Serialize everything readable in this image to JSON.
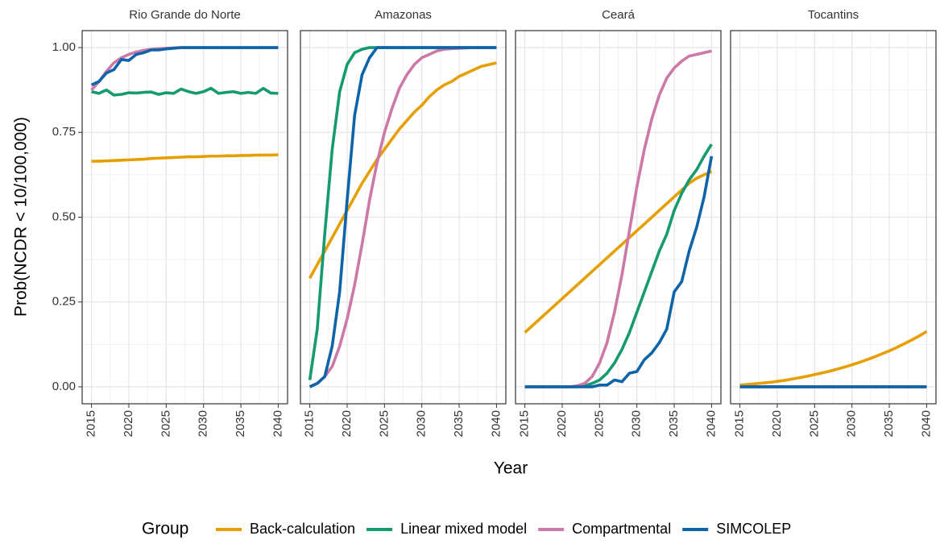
{
  "axis_labels": {
    "x": "Year",
    "y": "Prob(NCDR < 10/100,000)"
  },
  "legend_title": "Group",
  "chart_data": [
    {
      "type": "line",
      "title": "Rio Grande do Norte",
      "x": [
        2015,
        2016,
        2017,
        2018,
        2019,
        2020,
        2021,
        2022,
        2023,
        2024,
        2025,
        2026,
        2027,
        2028,
        2029,
        2030,
        2031,
        2032,
        2033,
        2034,
        2035,
        2036,
        2037,
        2038,
        2039,
        2040
      ],
      "xlim": [
        2013.75,
        2041.25
      ],
      "xticks": [
        2015,
        2020,
        2025,
        2030,
        2035,
        2040
      ],
      "ylim": [
        -0.05,
        1.05
      ],
      "yticks": [
        {
          "value": 0,
          "label": "0.00"
        },
        {
          "value": 0.25,
          "label": "0.25"
        },
        {
          "value": 0.5,
          "label": "0.50"
        },
        {
          "value": 0.75,
          "label": "0.75"
        },
        {
          "value": 1,
          "label": "1.00"
        }
      ],
      "grid": true,
      "series": [
        {
          "name": "Back-calculation",
          "color": "#E69F00",
          "values": [
            0.665,
            0.665,
            0.666,
            0.667,
            0.668,
            0.669,
            0.67,
            0.671,
            0.673,
            0.674,
            0.675,
            0.676,
            0.677,
            0.678,
            0.678,
            0.679,
            0.68,
            0.68,
            0.681,
            0.681,
            0.682,
            0.682,
            0.683,
            0.683,
            0.683,
            0.684
          ]
        },
        {
          "name": "Linear mixed model",
          "color": "#169A70",
          "values": [
            0.87,
            0.865,
            0.875,
            0.86,
            0.862,
            0.867,
            0.866,
            0.868,
            0.869,
            0.862,
            0.867,
            0.865,
            0.878,
            0.87,
            0.865,
            0.87,
            0.88,
            0.865,
            0.868,
            0.87,
            0.865,
            0.868,
            0.865,
            0.88,
            0.866,
            0.865
          ]
        },
        {
          "name": "Compartmental",
          "color": "#CC79A7",
          "values": [
            0.875,
            0.9,
            0.93,
            0.955,
            0.97,
            0.98,
            0.987,
            0.992,
            0.995,
            0.997,
            0.998,
            0.999,
            1,
            1,
            1,
            1,
            1,
            1,
            1,
            1,
            1,
            1,
            1,
            1,
            1,
            1
          ]
        },
        {
          "name": "SIMCOLEP",
          "color": "#0E64A8",
          "values": [
            0.89,
            0.9,
            0.925,
            0.935,
            0.965,
            0.962,
            0.98,
            0.985,
            0.993,
            0.993,
            0.996,
            0.998,
            1,
            1,
            1,
            1,
            1,
            1,
            1,
            1,
            1,
            1,
            1,
            1,
            1,
            1
          ]
        }
      ]
    },
    {
      "type": "line",
      "title": "Amazonas",
      "x": [
        2015,
        2016,
        2017,
        2018,
        2019,
        2020,
        2021,
        2022,
        2023,
        2024,
        2025,
        2026,
        2027,
        2028,
        2029,
        2030,
        2031,
        2032,
        2033,
        2034,
        2035,
        2036,
        2037,
        2038,
        2039,
        2040
      ],
      "xlim": [
        2013.75,
        2041.25
      ],
      "xticks": [
        2015,
        2020,
        2025,
        2030,
        2035,
        2040
      ],
      "ylim": [
        -0.05,
        1.05
      ],
      "yticks": [
        0,
        0.25,
        0.5,
        0.75,
        1
      ],
      "grid": true,
      "series": [
        {
          "name": "Back-calculation",
          "color": "#E69F00",
          "values": [
            0.32,
            0.36,
            0.4,
            0.44,
            0.48,
            0.52,
            0.56,
            0.6,
            0.635,
            0.67,
            0.7,
            0.73,
            0.76,
            0.785,
            0.81,
            0.83,
            0.855,
            0.875,
            0.89,
            0.9,
            0.915,
            0.925,
            0.935,
            0.945,
            0.95,
            0.955
          ]
        },
        {
          "name": "Linear mixed model",
          "color": "#169A70",
          "values": [
            0.02,
            0.17,
            0.45,
            0.7,
            0.87,
            0.95,
            0.985,
            0.995,
            1,
            1,
            1,
            1,
            1,
            1,
            1,
            1,
            1,
            1,
            1,
            1,
            1,
            1,
            1,
            1,
            1,
            1
          ]
        },
        {
          "name": "Compartmental",
          "color": "#CC79A7",
          "values": [
            0,
            0.01,
            0.03,
            0.06,
            0.12,
            0.2,
            0.3,
            0.42,
            0.55,
            0.66,
            0.75,
            0.82,
            0.88,
            0.92,
            0.95,
            0.97,
            0.98,
            0.99,
            0.995,
            0.997,
            0.998,
            0.999,
            1,
            1,
            1,
            1
          ]
        },
        {
          "name": "SIMCOLEP",
          "color": "#0E64A8",
          "values": [
            0,
            0.01,
            0.03,
            0.12,
            0.28,
            0.55,
            0.8,
            0.92,
            0.97,
            1,
            1,
            1,
            1,
            1,
            1,
            1,
            1,
            1,
            1,
            1,
            1,
            1,
            1,
            1,
            1,
            1
          ]
        }
      ]
    },
    {
      "type": "line",
      "title": "Ceará",
      "x": [
        2015,
        2016,
        2017,
        2018,
        2019,
        2020,
        2021,
        2022,
        2023,
        2024,
        2025,
        2026,
        2027,
        2028,
        2029,
        2030,
        2031,
        2032,
        2033,
        2034,
        2035,
        2036,
        2037,
        2038,
        2039,
        2040
      ],
      "xlim": [
        2013.75,
        2041.25
      ],
      "xticks": [
        2015,
        2020,
        2025,
        2030,
        2035,
        2040
      ],
      "ylim": [
        -0.05,
        1.05
      ],
      "yticks": [
        0,
        0.25,
        0.5,
        0.75,
        1
      ],
      "grid": true,
      "series": [
        {
          "name": "Back-calculation",
          "color": "#E69F00",
          "values": [
            0.16,
            0.18,
            0.2,
            0.22,
            0.24,
            0.26,
            0.28,
            0.3,
            0.32,
            0.34,
            0.36,
            0.38,
            0.4,
            0.42,
            0.44,
            0.46,
            0.48,
            0.5,
            0.52,
            0.54,
            0.56,
            0.58,
            0.6,
            0.615,
            0.625,
            0.635
          ]
        },
        {
          "name": "Linear mixed model",
          "color": "#169A70",
          "values": [
            0,
            0,
            0,
            0,
            0,
            0,
            0,
            0,
            0.003,
            0.01,
            0.02,
            0.04,
            0.07,
            0.11,
            0.16,
            0.22,
            0.28,
            0.34,
            0.4,
            0.45,
            0.52,
            0.57,
            0.61,
            0.64,
            0.68,
            0.715
          ]
        },
        {
          "name": "Compartmental",
          "color": "#CC79A7",
          "values": [
            0,
            0,
            0,
            0,
            0,
            0,
            0,
            0.003,
            0.01,
            0.03,
            0.07,
            0.13,
            0.22,
            0.33,
            0.46,
            0.59,
            0.7,
            0.79,
            0.86,
            0.91,
            0.94,
            0.96,
            0.975,
            0.98,
            0.985,
            0.99
          ]
        },
        {
          "name": "SIMCOLEP",
          "color": "#0E64A8",
          "values": [
            0,
            0,
            0,
            0,
            0,
            0,
            0,
            0,
            0,
            0,
            0.005,
            0.005,
            0.02,
            0.015,
            0.04,
            0.045,
            0.08,
            0.1,
            0.13,
            0.17,
            0.28,
            0.31,
            0.4,
            0.47,
            0.56,
            0.68
          ]
        }
      ]
    },
    {
      "type": "line",
      "title": "Tocantins",
      "x": [
        2015,
        2016,
        2017,
        2018,
        2019,
        2020,
        2021,
        2022,
        2023,
        2024,
        2025,
        2026,
        2027,
        2028,
        2029,
        2030,
        2031,
        2032,
        2033,
        2034,
        2035,
        2036,
        2037,
        2038,
        2039,
        2040
      ],
      "xlim": [
        2013.75,
        2041.25
      ],
      "xticks": [
        2015,
        2020,
        2025,
        2030,
        2035,
        2040
      ],
      "ylim": [
        -0.05,
        1.05
      ],
      "yticks": [
        0,
        0.25,
        0.5,
        0.75,
        1
      ],
      "grid": true,
      "series": [
        {
          "name": "Back-calculation",
          "color": "#E69F00",
          "values": [
            0.005,
            0.007,
            0.009,
            0.011,
            0.013,
            0.016,
            0.019,
            0.023,
            0.027,
            0.031,
            0.036,
            0.041,
            0.046,
            0.052,
            0.058,
            0.065,
            0.072,
            0.08,
            0.088,
            0.097,
            0.106,
            0.116,
            0.127,
            0.138,
            0.15,
            0.163
          ]
        },
        {
          "name": "Linear mixed model",
          "color": "#169A70",
          "values": [
            0,
            0,
            0,
            0,
            0,
            0,
            0,
            0,
            0,
            0,
            0,
            0,
            0,
            0,
            0,
            0,
            0,
            0,
            0,
            0,
            0,
            0,
            0,
            0,
            0,
            0
          ]
        },
        {
          "name": "Compartmental",
          "color": "#CC79A7",
          "values": [
            0,
            0,
            0,
            0,
            0,
            0,
            0,
            0,
            0,
            0,
            0,
            0,
            0,
            0,
            0,
            0,
            0,
            0,
            0,
            0,
            0,
            0,
            0,
            0,
            0,
            0
          ]
        },
        {
          "name": "SIMCOLEP",
          "color": "#0E64A8",
          "values": [
            0,
            0,
            0,
            0,
            0,
            0,
            0,
            0,
            0,
            0,
            0,
            0,
            0,
            0,
            0,
            0,
            0,
            0,
            0,
            0,
            0,
            0,
            0,
            0,
            0,
            0
          ]
        }
      ]
    }
  ]
}
